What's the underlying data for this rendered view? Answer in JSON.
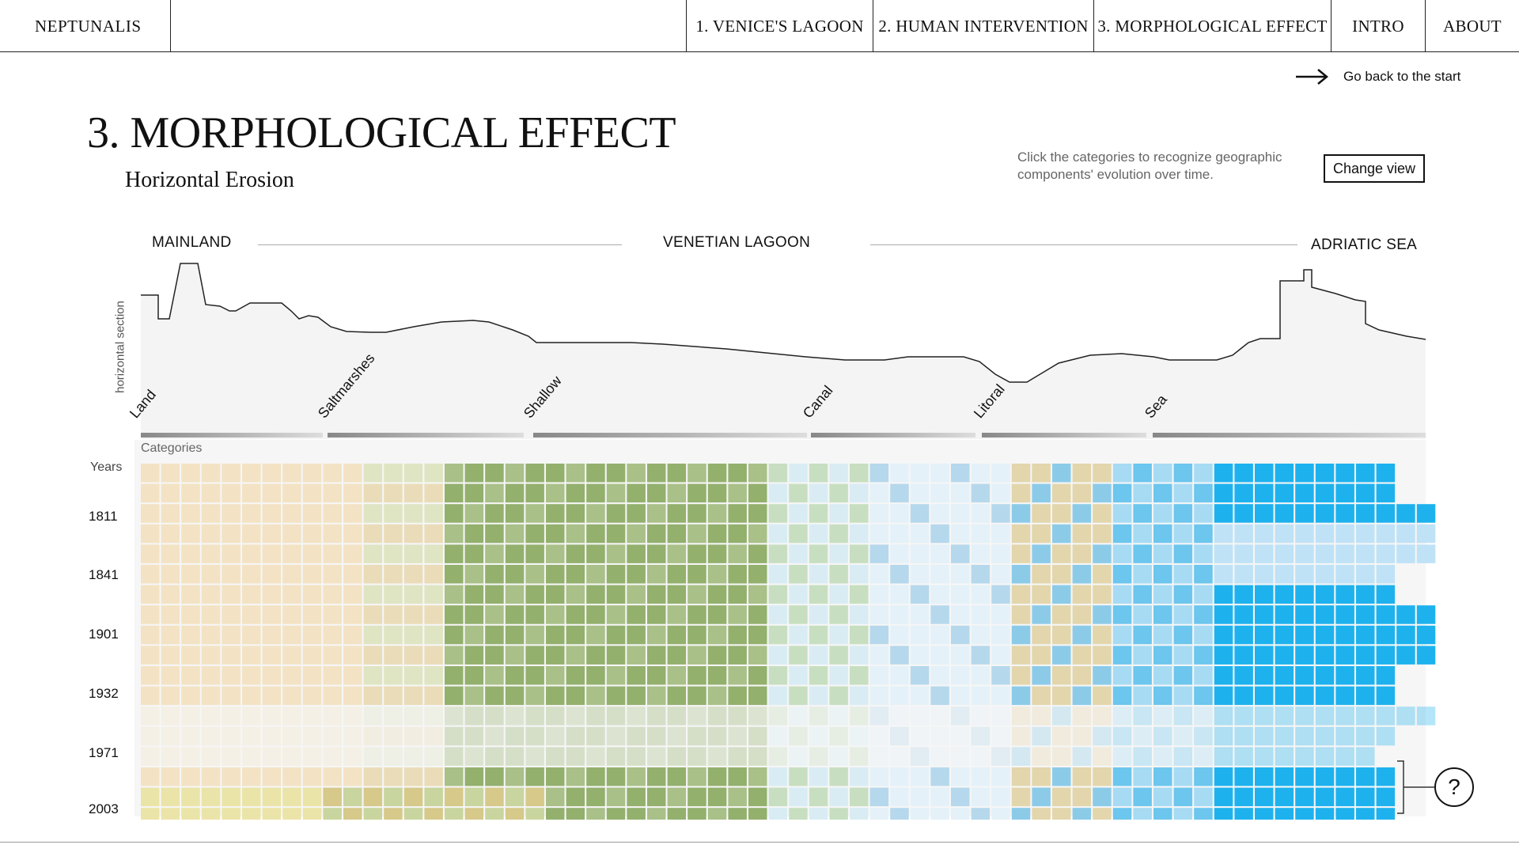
{
  "brand": "NEPTUNALIS",
  "nav": [
    "1. VENICE'S LAGOON",
    "2. HUMAN INTERVENTION",
    "3. MORPHOLOGICAL EFFECT",
    "INTRO",
    "ABOUT"
  ],
  "back_label": "Go back to the start",
  "title": "3. MORPHOLOGICAL EFFECT",
  "subtitle": "Horizontal Erosion",
  "hint": "Click the categories to recognize geographic components' evolution over time.",
  "change_view": "Change view",
  "zones": {
    "mainland": "MAINLAND",
    "lagoon": "VENETIAN LAGOON",
    "sea": "ADRIATIC SEA"
  },
  "section_axis": "horizontal section",
  "categories_title": "Categories",
  "categories": [
    {
      "name": "Land",
      "color": "#f3e3c4"
    },
    {
      "name": "Saltmarshes",
      "color": "#9db77a"
    },
    {
      "name": "Shallow",
      "color": "#cfe6f2"
    },
    {
      "name": "Canal",
      "color": "#a9d2ea"
    },
    {
      "name": "Litoral",
      "color": "#e8d9a8"
    },
    {
      "name": "Sea",
      "color": "#22b4ee"
    }
  ],
  "years_title": "Years",
  "years": [
    "1811",
    "1841",
    "1901",
    "1932",
    "1971",
    "2003"
  ],
  "help": "?"
}
